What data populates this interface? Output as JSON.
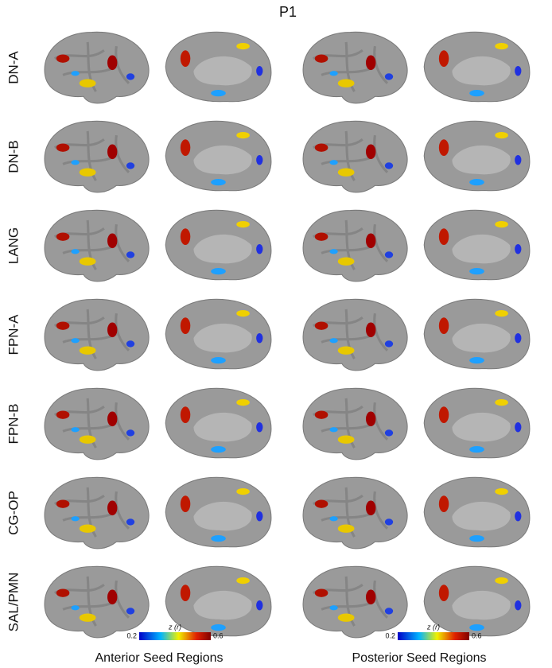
{
  "title": "P1",
  "rows": [
    "DN-A",
    "DN-B",
    "LANG",
    "FPN-A",
    "FPN-B",
    "CG-OP",
    "SAL/PMN"
  ],
  "colorbars": [
    {
      "label": "z (r)",
      "min": 0.2,
      "max": 0.6
    },
    {
      "label": "z (r)",
      "min": 0.2,
      "max": 0.6
    }
  ],
  "columns": [
    "Anterior Seed Regions",
    "Posterior Seed Regions"
  ]
}
